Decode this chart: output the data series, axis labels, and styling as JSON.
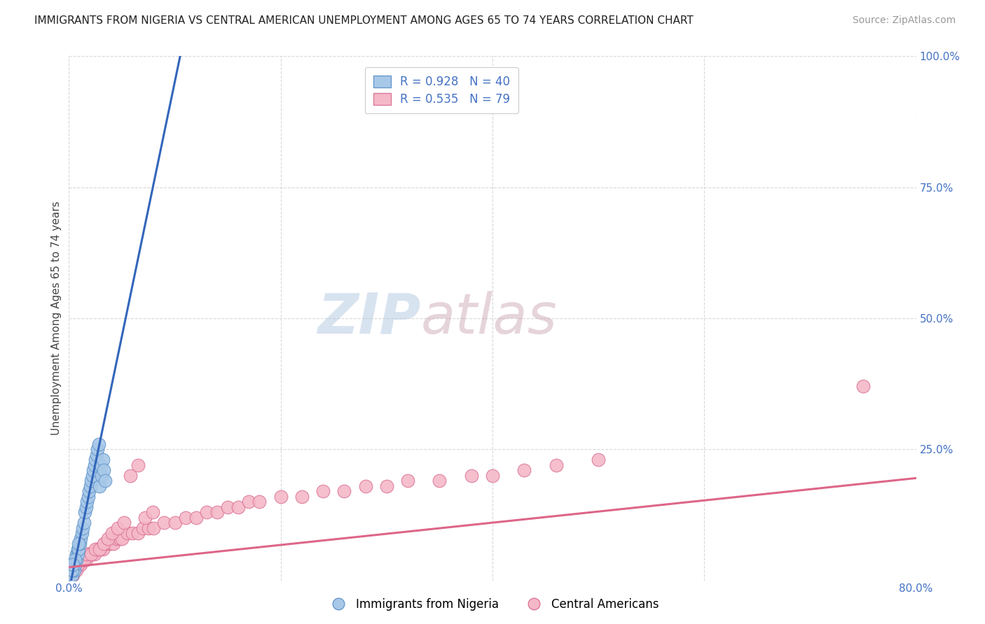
{
  "title": "IMMIGRANTS FROM NIGERIA VS CENTRAL AMERICAN UNEMPLOYMENT AMONG AGES 65 TO 74 YEARS CORRELATION CHART",
  "source": "Source: ZipAtlas.com",
  "ylabel": "Unemployment Among Ages 65 to 74 years",
  "xlim": [
    0,
    0.8
  ],
  "ylim": [
    0,
    1.0
  ],
  "nigeria_color": "#a8c8e8",
  "nigeria_edge_color": "#6699cc",
  "nigeria_line_color": "#3366bb",
  "central_color": "#f4b8c8",
  "central_edge_color": "#dd7799",
  "central_line_color": "#dd6688",
  "legend_nigeria_R": "0.928",
  "legend_nigeria_N": "40",
  "legend_central_R": "0.535",
  "legend_central_N": "79",
  "watermark_zip": "ZIP",
  "watermark_atlas": "atlas",
  "nigeria_scatter_x": [
    0.002,
    0.003,
    0.004,
    0.005,
    0.005,
    0.006,
    0.007,
    0.007,
    0.008,
    0.008,
    0.009,
    0.01,
    0.011,
    0.012,
    0.013,
    0.014,
    0.015,
    0.016,
    0.017,
    0.018,
    0.019,
    0.02,
    0.021,
    0.022,
    0.023,
    0.024,
    0.025,
    0.026,
    0.027,
    0.028,
    0.029,
    0.03,
    0.031,
    0.032,
    0.033,
    0.034,
    0.003,
    0.006,
    0.009,
    0.004
  ],
  "nigeria_scatter_y": [
    0.01,
    0.01,
    0.02,
    0.02,
    0.03,
    0.03,
    0.04,
    0.05,
    0.05,
    0.06,
    0.06,
    0.07,
    0.08,
    0.09,
    0.1,
    0.11,
    0.13,
    0.14,
    0.15,
    0.16,
    0.17,
    0.18,
    0.19,
    0.2,
    0.21,
    0.22,
    0.23,
    0.24,
    0.25,
    0.26,
    0.18,
    0.22,
    0.2,
    0.23,
    0.21,
    0.19,
    0.02,
    0.04,
    0.07,
    0.03
  ],
  "nigeria_line_x": [
    0.0,
    0.105
  ],
  "nigeria_line_y": [
    -0.02,
    1.0
  ],
  "central_scatter_x": [
    0.002,
    0.004,
    0.005,
    0.006,
    0.007,
    0.008,
    0.009,
    0.01,
    0.011,
    0.012,
    0.013,
    0.014,
    0.015,
    0.016,
    0.017,
    0.018,
    0.019,
    0.02,
    0.022,
    0.024,
    0.026,
    0.028,
    0.03,
    0.032,
    0.035,
    0.038,
    0.04,
    0.042,
    0.045,
    0.048,
    0.05,
    0.055,
    0.06,
    0.065,
    0.07,
    0.075,
    0.08,
    0.09,
    0.1,
    0.11,
    0.12,
    0.13,
    0.14,
    0.15,
    0.16,
    0.17,
    0.18,
    0.2,
    0.22,
    0.24,
    0.26,
    0.28,
    0.3,
    0.32,
    0.35,
    0.38,
    0.4,
    0.43,
    0.46,
    0.5,
    0.003,
    0.006,
    0.008,
    0.011,
    0.014,
    0.017,
    0.021,
    0.025,
    0.029,
    0.033,
    0.037,
    0.041,
    0.046,
    0.052,
    0.058,
    0.065,
    0.072,
    0.079,
    0.75
  ],
  "central_scatter_y": [
    0.01,
    0.01,
    0.02,
    0.02,
    0.02,
    0.03,
    0.03,
    0.03,
    0.03,
    0.04,
    0.04,
    0.04,
    0.04,
    0.04,
    0.05,
    0.05,
    0.05,
    0.05,
    0.05,
    0.05,
    0.06,
    0.06,
    0.06,
    0.06,
    0.07,
    0.07,
    0.07,
    0.07,
    0.08,
    0.08,
    0.08,
    0.09,
    0.09,
    0.09,
    0.1,
    0.1,
    0.1,
    0.11,
    0.11,
    0.12,
    0.12,
    0.13,
    0.13,
    0.14,
    0.14,
    0.15,
    0.15,
    0.16,
    0.16,
    0.17,
    0.17,
    0.18,
    0.18,
    0.19,
    0.19,
    0.2,
    0.2,
    0.21,
    0.22,
    0.23,
    0.02,
    0.03,
    0.03,
    0.04,
    0.04,
    0.05,
    0.05,
    0.06,
    0.06,
    0.07,
    0.08,
    0.09,
    0.1,
    0.11,
    0.2,
    0.22,
    0.12,
    0.13,
    0.37
  ],
  "central_line_x": [
    0.0,
    0.8
  ],
  "central_line_y": [
    0.025,
    0.195
  ],
  "background_color": "#ffffff",
  "grid_color": "#d8d8d8",
  "title_fontsize": 11,
  "axis_label_fontsize": 11,
  "tick_fontsize": 11,
  "legend_fontsize": 12,
  "source_fontsize": 10
}
